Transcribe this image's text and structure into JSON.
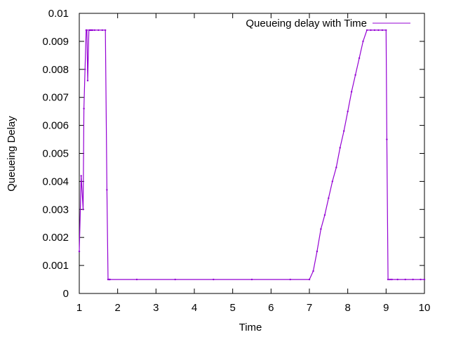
{
  "chart_data": {
    "type": "line",
    "title": "",
    "xlabel": "Time",
    "ylabel": "Queueing Delay",
    "xlim": [
      1,
      10
    ],
    "ylim": [
      0,
      0.01
    ],
    "x_ticks": [
      1,
      2,
      3,
      4,
      5,
      6,
      7,
      8,
      9,
      10
    ],
    "x_tick_labels": [
      "1",
      "2",
      "3",
      "4",
      "5",
      "6",
      "7",
      "8",
      "9",
      "10"
    ],
    "y_ticks": [
      0,
      0.001,
      0.002,
      0.003,
      0.004,
      0.005,
      0.006,
      0.007,
      0.008,
      0.009,
      0.01
    ],
    "y_tick_labels": [
      "0",
      "0.001",
      "0.002",
      "0.003",
      "0.004",
      "0.005",
      "0.006",
      "0.007",
      "0.008",
      "0.009",
      "0.01"
    ],
    "grid": false,
    "legend_position": "top-right",
    "series": [
      {
        "name": "Queueing  delay with Time",
        "color": "#9400d3",
        "x": [
          1.0,
          1.05,
          1.1,
          1.12,
          1.15,
          1.18,
          1.2,
          1.22,
          1.25,
          1.28,
          1.3,
          1.32,
          1.35,
          1.4,
          1.5,
          1.6,
          1.68,
          1.72,
          1.75,
          1.78,
          1.8,
          2.5,
          3.5,
          4.5,
          5.5,
          6.5,
          7.0,
          7.1,
          7.2,
          7.3,
          7.4,
          7.5,
          7.6,
          7.7,
          7.8,
          7.9,
          8.0,
          8.1,
          8.2,
          8.3,
          8.4,
          8.5,
          8.6,
          8.7,
          8.8,
          8.9,
          9.0,
          9.02,
          9.05,
          9.1,
          9.15,
          9.3,
          9.5,
          9.7,
          9.9,
          10.0
        ],
        "y": [
          0.0015,
          0.0042,
          0.003,
          0.0066,
          0.008,
          0.0094,
          0.0094,
          0.0076,
          0.0094,
          0.0094,
          0.0094,
          0.0094,
          0.0094,
          0.0094,
          0.0094,
          0.0094,
          0.0094,
          0.0037,
          0.0005,
          0.0005,
          0.0005,
          0.0005,
          0.0005,
          0.0005,
          0.0005,
          0.0005,
          0.0005,
          0.0008,
          0.0015,
          0.0023,
          0.0028,
          0.0034,
          0.004,
          0.0045,
          0.0052,
          0.0058,
          0.0065,
          0.0072,
          0.0078,
          0.0084,
          0.009,
          0.0094,
          0.0094,
          0.0094,
          0.0094,
          0.0094,
          0.0094,
          0.0055,
          0.0005,
          0.0005,
          0.0005,
          0.0005,
          0.0005,
          0.0005,
          0.0005,
          0.0005
        ]
      }
    ]
  }
}
